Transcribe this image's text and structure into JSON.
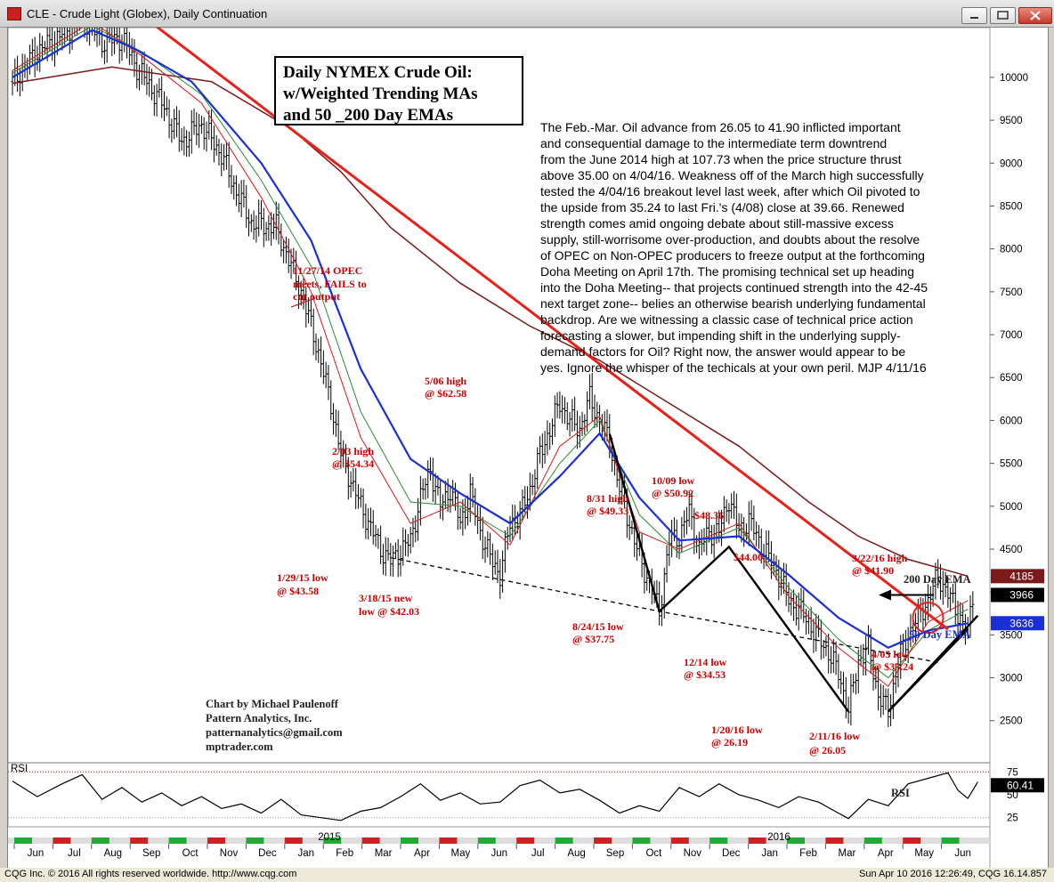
{
  "window": {
    "title": "CLE - Crude Light (Globex), Daily Continuation"
  },
  "status": {
    "left": "CQG Inc. © 2016 All rights reserved worldwide. http://www.cqg.com",
    "right": "Sun Apr 10 2016 12:26:49, CQG 16.14.857"
  },
  "chart_data": {
    "type": "candlestick",
    "title_lines": [
      "Daily NYMEX Crude Oil:",
      "w/Weighted Trending MAs",
      "and 50 _200 Day EMAs"
    ],
    "commentary": [
      "The Feb.-Mar. Oil advance from 26.05 to 41.90 inflicted important",
      "and consequential damage to the intermediate term downtrend",
      "from the June 2014 high at 107.73 when the price structure thrust",
      "above 35.00 on 4/04/16. Weakness off of the March high successfully",
      "tested the 4/04/16 breakout level last week, after which Oil pivoted to",
      "the upside from 35.24 to last Fri.'s (4/08) close at 39.66. Renewed",
      "strength comes amid ongoing debate about still-massive excess",
      "supply, still-worrisome over-production, and doubts about the resolve",
      "of OPEC on Non-OPEC producers to freeze output at the forthcoming",
      "Doha Meeting on April 17th. The promising technical set up heading",
      "into the Doha Meeting-- that projects continued strength into the 42-45",
      "next target zone--  belies an otherwise bearish underlying fundamental",
      "backdrop. Are we witnessing a classic case of technical price action",
      "forecasting a slower, but impending shift in the underlying supply-",
      "demand factors for Oil? Right now, the answer would appear to be",
      "yes. Ignore the whisper of the techicals at your own peril. MJP 4/11/16"
    ],
    "credit_lines": [
      "Chart by Michael Paulenoff",
      "Pattern Analytics, Inc.",
      "patternanalytics@gmail.com",
      "mptrader.com"
    ],
    "y_ticks": [
      "10000",
      "9500",
      "9000",
      "8500",
      "8000",
      "7500",
      "7000",
      "6500",
      "6000",
      "5500",
      "5000",
      "4500",
      "4000",
      "3500",
      "3000",
      "2500"
    ],
    "y_tick_values": [
      10000,
      9500,
      9000,
      8500,
      8000,
      7500,
      7000,
      6500,
      6000,
      5500,
      5000,
      4500,
      4000,
      3500,
      3000,
      2500
    ],
    "ylim": [
      2020,
      10580
    ],
    "months": [
      "Jun",
      "Jul",
      "Aug",
      "Sep",
      "Oct",
      "Nov",
      "Dec",
      "Jan",
      "Feb",
      "Mar",
      "Apr",
      "May",
      "Jun",
      "Jul",
      "Aug",
      "Sep",
      "Oct",
      "Nov",
      "Dec",
      "Jan",
      "Feb",
      "Mar",
      "Apr",
      "May",
      "Jun"
    ],
    "years": [
      "2015",
      "2016"
    ],
    "price_tags": {
      "ema200": "4185",
      "last": "3966",
      "ema50": "3636"
    },
    "price_tag_values": {
      "ema200": 4185,
      "last": 3966,
      "ema50": 3636
    },
    "price_path": [
      [
        0,
        9950
      ],
      [
        5,
        10300
      ],
      [
        10,
        10500
      ],
      [
        14,
        10720
      ],
      [
        18,
        10410
      ],
      [
        22,
        10460
      ],
      [
        25,
        10120
      ],
      [
        30,
        9700
      ],
      [
        34,
        9250
      ],
      [
        38,
        9450
      ],
      [
        42,
        9100
      ],
      [
        44,
        8800
      ],
      [
        48,
        8300
      ],
      [
        53,
        8250
      ],
      [
        56,
        7800
      ],
      [
        58,
        7500
      ],
      [
        61,
        6900
      ],
      [
        64,
        6200
      ],
      [
        66,
        5600
      ],
      [
        70,
        5000
      ],
      [
        74,
        4500
      ],
      [
        76,
        4358
      ],
      [
        80,
        4600
      ],
      [
        82,
        5100
      ],
      [
        84,
        5434
      ],
      [
        86,
        5000
      ],
      [
        88,
        5200
      ],
      [
        90,
        4800
      ],
      [
        92,
        5150
      ],
      [
        94,
        4700
      ],
      [
        96,
        4400
      ],
      [
        98,
        4203
      ],
      [
        100,
        4800
      ],
      [
        102,
        4900
      ],
      [
        104,
        5200
      ],
      [
        106,
        5600
      ],
      [
        108,
        5900
      ],
      [
        110,
        6200
      ],
      [
        112,
        6000
      ],
      [
        114,
        5900
      ],
      [
        116,
        6258
      ],
      [
        118,
        6000
      ],
      [
        120,
        5750
      ],
      [
        122,
        5200
      ],
      [
        124,
        4800
      ],
      [
        126,
        4400
      ],
      [
        128,
        4100
      ],
      [
        130,
        3775
      ],
      [
        132,
        4600
      ],
      [
        134,
        4650
      ],
      [
        136,
        4933
      ],
      [
        138,
        4500
      ],
      [
        140,
        4700
      ],
      [
        142,
        4700
      ],
      [
        144,
        5092
      ],
      [
        146,
        4700
      ],
      [
        148,
        4836
      ],
      [
        150,
        4600
      ],
      [
        152,
        4400
      ],
      [
        154,
        4200
      ],
      [
        156,
        3900
      ],
      [
        158,
        3800
      ],
      [
        160,
        3650
      ],
      [
        162,
        3453
      ],
      [
        164,
        3300
      ],
      [
        166,
        3050
      ],
      [
        168,
        2619
      ],
      [
        170,
        3200
      ],
      [
        172,
        3350
      ],
      [
        174,
        2800
      ],
      [
        176,
        2605
      ],
      [
        178,
        3200
      ],
      [
        180,
        3500
      ],
      [
        182,
        3700
      ],
      [
        184,
        3900
      ],
      [
        186,
        4190
      ],
      [
        188,
        3980
      ],
      [
        190,
        3750
      ],
      [
        192,
        3524
      ],
      [
        193,
        3966
      ]
    ],
    "ema200_path": [
      [
        0,
        9930
      ],
      [
        20,
        10120
      ],
      [
        40,
        9950
      ],
      [
        56,
        9400
      ],
      [
        66,
        8900
      ],
      [
        76,
        8250
      ],
      [
        90,
        7600
      ],
      [
        104,
        7100
      ],
      [
        118,
        6700
      ],
      [
        132,
        6200
      ],
      [
        146,
        5700
      ],
      [
        160,
        5050
      ],
      [
        170,
        4650
      ],
      [
        180,
        4380
      ],
      [
        192,
        4185
      ]
    ],
    "ema50_path": [
      [
        0,
        10000
      ],
      [
        16,
        10550
      ],
      [
        24,
        10350
      ],
      [
        36,
        9950
      ],
      [
        50,
        9000
      ],
      [
        60,
        8100
      ],
      [
        70,
        6600
      ],
      [
        80,
        5550
      ],
      [
        90,
        5150
      ],
      [
        100,
        4800
      ],
      [
        110,
        5350
      ],
      [
        118,
        5850
      ],
      [
        126,
        5100
      ],
      [
        134,
        4600
      ],
      [
        146,
        4650
      ],
      [
        156,
        4200
      ],
      [
        166,
        3700
      ],
      [
        176,
        3350
      ],
      [
        184,
        3550
      ],
      [
        192,
        3636
      ]
    ],
    "green_ma_path": [
      [
        0,
        10050
      ],
      [
        16,
        10600
      ],
      [
        26,
        10300
      ],
      [
        38,
        9800
      ],
      [
        50,
        8800
      ],
      [
        60,
        7800
      ],
      [
        70,
        6100
      ],
      [
        80,
        5050
      ],
      [
        90,
        5000
      ],
      [
        100,
        4650
      ],
      [
        110,
        5500
      ],
      [
        118,
        6000
      ],
      [
        126,
        4900
      ],
      [
        134,
        4450
      ],
      [
        146,
        4750
      ],
      [
        156,
        4050
      ],
      [
        166,
        3450
      ],
      [
        176,
        3000
      ],
      [
        184,
        3550
      ],
      [
        192,
        3800
      ]
    ],
    "red_ma_path": [
      [
        0,
        10080
      ],
      [
        16,
        10650
      ],
      [
        26,
        10250
      ],
      [
        38,
        9700
      ],
      [
        50,
        8600
      ],
      [
        60,
        7500
      ],
      [
        70,
        5800
      ],
      [
        80,
        4800
      ],
      [
        90,
        5050
      ],
      [
        100,
        4550
      ],
      [
        110,
        5700
      ],
      [
        118,
        6050
      ],
      [
        126,
        4700
      ],
      [
        134,
        4500
      ],
      [
        146,
        4800
      ],
      [
        156,
        3950
      ],
      [
        166,
        3350
      ],
      [
        176,
        2900
      ],
      [
        184,
        3650
      ],
      [
        192,
        3900
      ]
    ],
    "downtrend_line": [
      [
        24,
        10810
      ],
      [
        188,
        3566
      ]
    ],
    "support_line_dashed": [
      [
        76,
        4400
      ],
      [
        130,
        3775
      ],
      [
        186,
        3180
      ]
    ],
    "v_pattern_1": [
      [
        120,
        5842
      ],
      [
        130,
        3775
      ],
      [
        144,
        4527
      ],
      [
        168,
        2605
      ]
    ],
    "uptrend_line": [
      [
        176,
        2605
      ],
      [
        194,
        3725
      ]
    ],
    "rsi_path": [
      [
        0,
        65
      ],
      [
        5,
        48
      ],
      [
        10,
        62
      ],
      [
        14,
        72
      ],
      [
        18,
        45
      ],
      [
        22,
        58
      ],
      [
        26,
        42
      ],
      [
        30,
        52
      ],
      [
        34,
        38
      ],
      [
        38,
        48
      ],
      [
        42,
        35
      ],
      [
        46,
        40
      ],
      [
        50,
        30
      ],
      [
        54,
        45
      ],
      [
        58,
        28
      ],
      [
        62,
        25
      ],
      [
        66,
        22
      ],
      [
        70,
        32
      ],
      [
        74,
        36
      ],
      [
        78,
        48
      ],
      [
        82,
        62
      ],
      [
        86,
        44
      ],
      [
        90,
        52
      ],
      [
        94,
        40
      ],
      [
        98,
        42
      ],
      [
        102,
        60
      ],
      [
        106,
        66
      ],
      [
        110,
        52
      ],
      [
        114,
        56
      ],
      [
        118,
        44
      ],
      [
        122,
        30
      ],
      [
        126,
        38
      ],
      [
        130,
        32
      ],
      [
        134,
        58
      ],
      [
        138,
        48
      ],
      [
        142,
        62
      ],
      [
        146,
        50
      ],
      [
        150,
        44
      ],
      [
        154,
        36
      ],
      [
        158,
        48
      ],
      [
        162,
        42
      ],
      [
        166,
        30
      ],
      [
        168,
        24
      ],
      [
        172,
        45
      ],
      [
        176,
        38
      ],
      [
        180,
        62
      ],
      [
        184,
        68
      ],
      [
        188,
        74
      ],
      [
        190,
        55
      ],
      [
        192,
        46
      ],
      [
        194,
        64
      ]
    ],
    "rsi_ticks": [
      "75",
      "50",
      "25"
    ],
    "rsi_tick_values": [
      75,
      50,
      25
    ],
    "rsi_last": "60.41",
    "rsi_last_value": 60.41,
    "rsi_ylim": [
      15,
      85
    ],
    "labels": {
      "rsi_name": "RSI",
      "rsi_pane_name": "RSI",
      "ema200": "200 Day EMA",
      "ema50": "50 Day EMA",
      "opec1": "11/27/14 OPEC",
      "opec2": "meets, FAILS to",
      "opec3": "cut output",
      "jan29_1": "1/29/15 low",
      "jan29_2": "@ $43.58",
      "mar18_1": "3/18/15 new",
      "mar18_2": "low @ $42.03",
      "feb03_1": "2/03 high",
      "feb03_2": "@ $54.34",
      "may06_1": "5/06 high",
      "may06_2": "@ $62.58",
      "aug24_1": "8/24/15 low",
      "aug24_2": "@ $37.75",
      "aug31_1": "8/31 high",
      "aug31_2": "@ $49.33",
      "oct09_1": "10/09 low",
      "oct09_2": "@ $50.92",
      "p4836": "$48.36",
      "p4400": "$44.00",
      "dec14_1": "12/14 low",
      "dec14_2": "@ $34.53",
      "jan20_1": "1/20/16 low",
      "jan20_2": "@ 26.19",
      "feb11_1": "2/11/16 low",
      "feb11_2": "@ 26.05",
      "mar22_1": "3/22/16 high",
      "mar22_2": "@ $41.90",
      "apr05_1": "4/05 low",
      "apr05_2": "@ $35.24"
    },
    "colors": {
      "downtrend": "#e8201a",
      "ema200": "#7a1a1a",
      "ema50": "#1a2fd6",
      "green_ma": "#2f8a2f",
      "red_ma": "#d81818",
      "annotation_red": "#cc0000",
      "tag_ema200": "#7a1a1a",
      "tag_last": "#000000",
      "tag_ema50": "#1a2fd6"
    }
  }
}
